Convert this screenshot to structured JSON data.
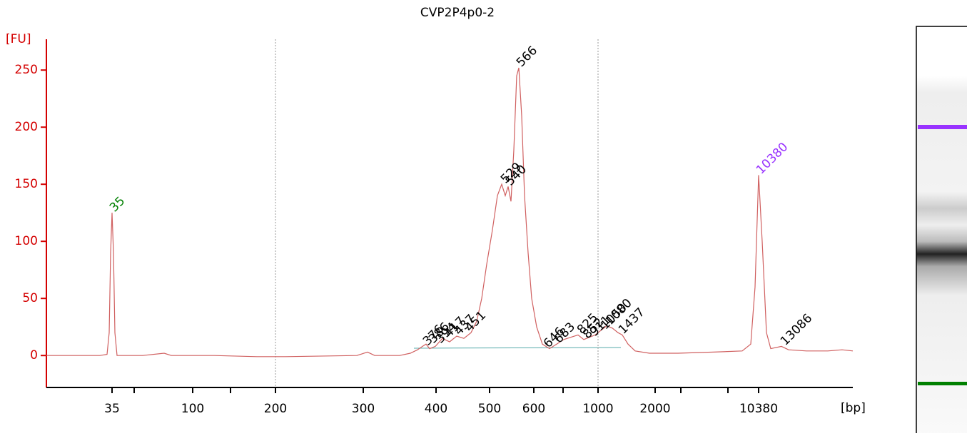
{
  "chart_data": {
    "type": "line",
    "title": "CVP2P4p0-2",
    "ylabel": "[FU]",
    "xlabel": "[bp]",
    "axis_color": "#d40000",
    "ylim": [
      -28,
      277
    ],
    "yticks": [
      0,
      50,
      100,
      150,
      200,
      250
    ],
    "xlim": [
      0,
      1130
    ],
    "xticks": [
      {
        "value": 92,
        "label": "35"
      },
      {
        "value": 205,
        "label": "100"
      },
      {
        "value": 321,
        "label": "200"
      },
      {
        "value": 444,
        "label": "300"
      },
      {
        "value": 546,
        "label": "400"
      },
      {
        "value": 621,
        "label": "500"
      },
      {
        "value": 683,
        "label": "600"
      },
      {
        "value": 773,
        "label": "1000"
      },
      {
        "value": 853,
        "label": "2000"
      },
      {
        "value": 998,
        "label": "10380"
      }
    ],
    "xticks_minor": [
      123,
      258,
      724,
      889,
      955
    ],
    "grid_x": [
      321,
      773
    ],
    "series": [
      {
        "name": "CVP2P4p0-2",
        "color": "#d06060",
        "x": [
          0,
          35,
          75,
          85,
          88,
          90,
          92,
          94,
          96,
          99,
          135,
          165,
          175,
          235,
          295,
          335,
          435,
          450,
          460,
          495,
          510,
          520,
          527,
          532,
          537,
          545,
          555,
          565,
          575,
          585,
          595,
          603,
          610,
          617,
          625,
          632,
          638,
          643,
          647,
          651,
          655,
          659,
          662,
          666,
          670,
          675,
          680,
          687,
          695,
          705,
          715,
          725,
          735,
          745,
          753,
          761,
          769,
          777,
          785,
          793,
          801,
          807,
          815,
          825,
          845,
          885,
          935,
          975,
          987,
          993,
          998,
          1003,
          1009,
          1015,
          1030,
          1040,
          1065,
          1095,
          1115,
          1130
        ],
        "values": [
          0,
          0,
          0,
          1,
          20,
          90,
          125,
          90,
          20,
          0,
          0,
          2,
          0,
          0,
          -1,
          -1,
          0,
          3,
          0,
          0,
          2,
          5,
          8,
          10,
          6,
          8,
          15,
          12,
          17,
          15,
          20,
          30,
          50,
          80,
          110,
          140,
          150,
          140,
          148,
          135,
          180,
          245,
          252,
          210,
          140,
          90,
          50,
          25,
          10,
          6,
          10,
          14,
          16,
          18,
          14,
          16,
          18,
          22,
          26,
          24,
          20,
          18,
          10,
          4,
          2,
          2,
          3,
          4,
          10,
          60,
          158,
          100,
          20,
          6,
          8,
          5,
          4,
          4,
          5,
          4
        ]
      }
    ],
    "annotations": [
      {
        "text": "35",
        "x": 92,
        "y": 125,
        "color": "#008000"
      },
      {
        "text": "529",
        "x": 640,
        "y": 150,
        "color": "#000000"
      },
      {
        "text": "540",
        "x": 647,
        "y": 148,
        "color": "#000000"
      },
      {
        "text": "566",
        "x": 662,
        "y": 252,
        "color": "#000000"
      },
      {
        "text": "10380",
        "x": 998,
        "y": 158,
        "color": "#9933ff"
      },
      {
        "text": "376",
        "x": 531,
        "y": 8,
        "color": "#000000"
      },
      {
        "text": "386",
        "x": 539,
        "y": 10,
        "color": "#000000"
      },
      {
        "text": "394",
        "x": 549,
        "y": 10,
        "color": "#000000"
      },
      {
        "text": "417",
        "x": 561,
        "y": 15,
        "color": "#000000"
      },
      {
        "text": "437",
        "x": 575,
        "y": 17,
        "color": "#000000"
      },
      {
        "text": "451",
        "x": 590,
        "y": 20,
        "color": "#000000"
      },
      {
        "text": "646",
        "x": 700,
        "y": 6,
        "color": "#000000"
      },
      {
        "text": "683",
        "x": 715,
        "y": 10,
        "color": "#000000"
      },
      {
        "text": "825",
        "x": 747,
        "y": 18,
        "color": "#000000"
      },
      {
        "text": "852",
        "x": 755,
        "y": 14,
        "color": "#000000"
      },
      {
        "text": "911",
        "x": 765,
        "y": 16,
        "color": "#000000"
      },
      {
        "text": "1050",
        "x": 780,
        "y": 22,
        "color": "#000000"
      },
      {
        "text": "1080",
        "x": 787,
        "y": 26,
        "color": "#000000"
      },
      {
        "text": "1437",
        "x": 805,
        "y": 18,
        "color": "#000000"
      },
      {
        "text": "13086",
        "x": 1032,
        "y": 8,
        "color": "#000000"
      }
    ]
  }
}
